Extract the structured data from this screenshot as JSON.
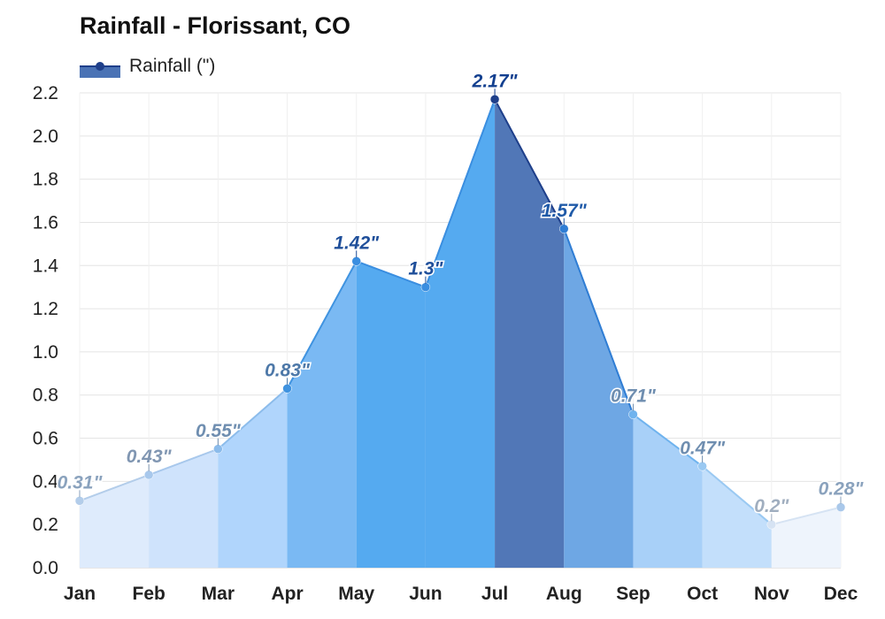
{
  "chart_data": {
    "type": "area",
    "title": "Rainfall - Florissant, CO",
    "legend": {
      "label": "Rainfall (\")",
      "placement": "top-left"
    },
    "categories": [
      "Jan",
      "Feb",
      "Mar",
      "Apr",
      "May",
      "Jun",
      "Jul",
      "Aug",
      "Sep",
      "Oct",
      "Nov",
      "Dec"
    ],
    "series": [
      {
        "name": "Rainfall (\")",
        "values": [
          0.31,
          0.43,
          0.55,
          0.83,
          1.42,
          1.3,
          2.17,
          1.57,
          0.71,
          0.47,
          0.2,
          0.28
        ],
        "data_labels": [
          "0.31\"",
          "0.43\"",
          "0.55\"",
          "0.83\"",
          "1.42\"",
          "1.3\"",
          "2.17\"",
          "1.57\"",
          "0.71\"",
          "0.47\"",
          "0.2\"",
          "0.28\""
        ]
      }
    ],
    "yticks": [
      "0.0",
      "0.2",
      "0.4",
      "0.6",
      "0.8",
      "1.0",
      "1.2",
      "1.4",
      "1.6",
      "1.8",
      "2.0",
      "2.2"
    ],
    "ylim": [
      0,
      2.2
    ],
    "grid": true,
    "colors": {
      "fill": [
        "#deebfc",
        "#cfe3fc",
        "#b0d5fc",
        "#7ab9f3",
        "#55aaf0",
        "#55aaf0",
        "#5177b7",
        "#6ea7e4",
        "#a8d0f8",
        "#c3dffb",
        "#eef4fc",
        "#d6e7fb"
      ],
      "line": [
        "#b3cdea",
        "#a8c8ec",
        "#8cbceb",
        "#3f93e0",
        "#3a8ee0",
        "#3a8ee0",
        "#1e3f8a",
        "#2f7dd4",
        "#6fb3ee",
        "#9ac9f2",
        "#d6e3f3",
        "#a9c8ea"
      ],
      "label": [
        "#8aa2bd",
        "#8096b2",
        "#6f8eb0",
        "#4d78a8",
        "#1f4f9a",
        "#1f4f9a",
        "#123f8f",
        "#1f5aa8",
        "#6f8eb0",
        "#6f8eb0",
        "#a0aebf",
        "#8aa2bd"
      ],
      "grid": "#e4e4e4",
      "axis": "#222222"
    }
  }
}
